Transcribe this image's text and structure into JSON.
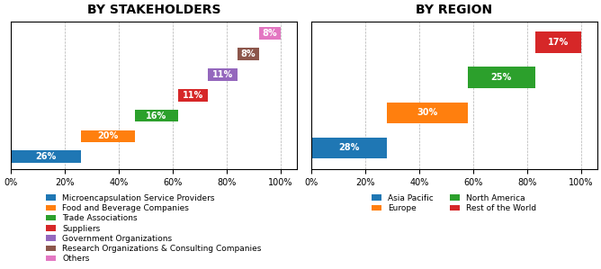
{
  "chart_data": [
    {
      "type": "waterfall",
      "orientation": "horizontal",
      "title": "BY STAKEHOLDERS",
      "categories": [
        "Microencapsulation Service Providers",
        "Food and Beverage Companies",
        "Trade Associations",
        "Suppliers",
        "Government Organizations",
        "Research Organizations & Consulting Companies",
        "Others"
      ],
      "values": [
        26,
        20,
        16,
        11,
        11,
        8,
        8
      ],
      "value_labels": [
        "26%",
        "20%",
        "16%",
        "11%",
        "11%",
        "8%",
        "8%"
      ],
      "data_labels": true,
      "xlim": [
        0,
        106
      ],
      "xticks": [
        {
          "value": 0,
          "label": "0%"
        },
        {
          "value": 20,
          "label": "20%"
        },
        {
          "value": 40,
          "label": "40%"
        },
        {
          "value": 60,
          "label": "60%"
        },
        {
          "value": 80,
          "label": "80%"
        },
        {
          "value": 100,
          "label": "100%"
        }
      ],
      "grid": true,
      "tick_labels": "x",
      "legend": "lower center"
    },
    {
      "type": "waterfall",
      "orientation": "horizontal",
      "title": "BY REGION",
      "categories": [
        "Asia Pacific",
        "Europe",
        "North America",
        "Rest of the World"
      ],
      "values": [
        28,
        30,
        25,
        17
      ],
      "value_labels": [
        "28%",
        "30%",
        "25%",
        "17%"
      ],
      "data_labels": true,
      "xlim": [
        0,
        106
      ],
      "xticks": [
        {
          "value": 0,
          "label": "0%"
        },
        {
          "value": 20,
          "label": "20%"
        },
        {
          "value": 40,
          "label": "40%"
        },
        {
          "value": 60,
          "label": "60%"
        },
        {
          "value": 80,
          "label": "80%"
        },
        {
          "value": 100,
          "label": "100%"
        }
      ],
      "grid": true,
      "tick_labels": "x",
      "legend": "lower center"
    }
  ]
}
